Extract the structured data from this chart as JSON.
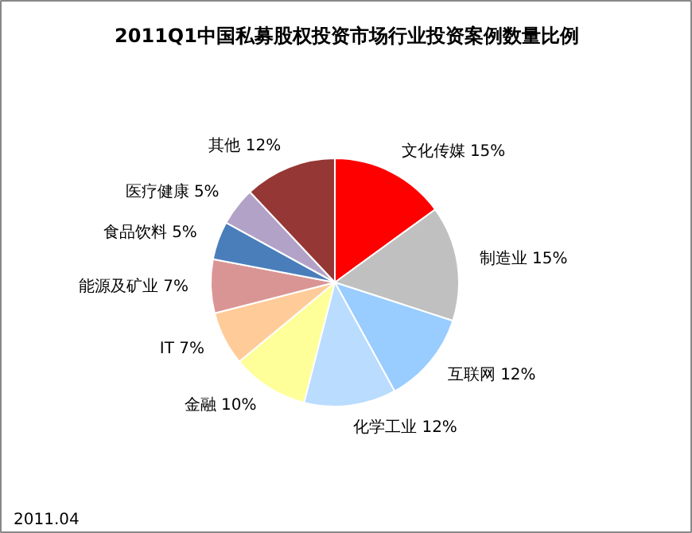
{
  "chart_data": {
    "type": "pie",
    "title": "2011Q1中国私募股权投资市场行业投资案例数量比例",
    "categories": [
      "文化传媒",
      "制造业",
      "互联网",
      "化学工业",
      "金融",
      "IT",
      "能源及矿业",
      "食品饮料",
      "医疗健康",
      "其他"
    ],
    "values": [
      15,
      15,
      12,
      12,
      10,
      7,
      7,
      5,
      5,
      12
    ],
    "value_labels": [
      "15%",
      "15%",
      "12%",
      "12%",
      "10%",
      "7%",
      "7%",
      "5%",
      "5%",
      "12%"
    ],
    "colors": [
      "#ff0000",
      "#c0c0c0",
      "#99ccff",
      "#b9dcff",
      "#ffff99",
      "#ffcc99",
      "#d99594",
      "#4a7ebb",
      "#b3a2c7",
      "#953735"
    ],
    "annotations": [
      "2011.04"
    ]
  }
}
